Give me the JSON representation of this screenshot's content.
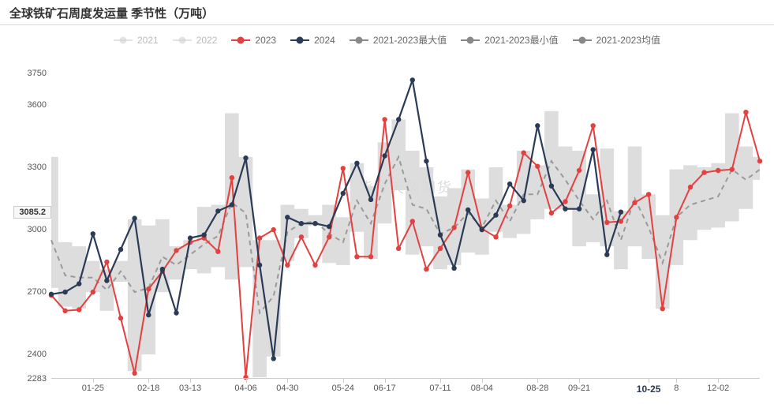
{
  "title": "全球铁矿石周度发运量 季节性（万吨）",
  "watermark": "紫金天风期货",
  "legend": [
    {
      "key": "2021",
      "label": "2021",
      "color": "#d0d0d0",
      "faded": true
    },
    {
      "key": "2022",
      "label": "2022",
      "color": "#d0d0d0",
      "faded": true
    },
    {
      "key": "2023",
      "label": "2023",
      "color": "#e34040",
      "faded": false
    },
    {
      "key": "2024",
      "label": "2024",
      "color": "#2b3a55",
      "faded": false
    },
    {
      "key": "max",
      "label": "2021-2023最大值",
      "color": "#888888",
      "faded": false
    },
    {
      "key": "min",
      "label": "2021-2023最小值",
      "color": "#888888",
      "faded": false
    },
    {
      "key": "avg",
      "label": "2021-2023均值",
      "color": "#888888",
      "faded": false
    }
  ],
  "chart": {
    "type": "line",
    "ylim": [
      2283,
      3820
    ],
    "yticks": [
      {
        "v": 2283,
        "label": "2283"
      },
      {
        "v": 2400,
        "label": "2400"
      },
      {
        "v": 2700,
        "label": "2700"
      },
      {
        "v": 3000,
        "label": "3000"
      },
      {
        "v": 3085.2,
        "label": "3085.2",
        "boxed": true
      },
      {
        "v": 3300,
        "label": "3300"
      },
      {
        "v": 3600,
        "label": "3600"
      },
      {
        "v": 3750,
        "label": "3750"
      }
    ],
    "xticks": [
      {
        "i": 3,
        "label": "01-25"
      },
      {
        "i": 7,
        "label": "02-18"
      },
      {
        "i": 10,
        "label": "03-13"
      },
      {
        "i": 14,
        "label": "04-06"
      },
      {
        "i": 17,
        "label": "04-30"
      },
      {
        "i": 21,
        "label": "05-24"
      },
      {
        "i": 24,
        "label": "06-17"
      },
      {
        "i": 28,
        "label": "07-11"
      },
      {
        "i": 31,
        "label": "08-04"
      },
      {
        "i": 35,
        "label": "08-28"
      },
      {
        "i": 38,
        "label": "09-21"
      },
      {
        "i": 43,
        "label": "10-25",
        "bold": true
      },
      {
        "i": 45,
        "label": "8",
        "small": true
      },
      {
        "i": 48,
        "label": "12-02"
      }
    ],
    "n_points": 52,
    "range_band": {
      "color": "#d9d9d9",
      "opacity": 0.9,
      "max": [
        3350,
        2940,
        2920,
        2850,
        2810,
        2850,
        3050,
        3020,
        3050,
        2920,
        2950,
        3110,
        3120,
        3560,
        3350,
        2950,
        2950,
        3120,
        3100,
        3070,
        3120,
        3060,
        3320,
        3210,
        3420,
        3530,
        3380,
        3300,
        3160,
        3200,
        3290,
        3150,
        3300,
        3120,
        3380,
        3310,
        3570,
        3400,
        3380,
        3170,
        3390,
        3090,
        3400,
        3170,
        3070,
        3290,
        3310,
        3300,
        3320,
        3560,
        3400,
        3350
      ],
      "min": [
        2720,
        2630,
        2620,
        2700,
        2610,
        2750,
        2320,
        2400,
        2700,
        2760,
        2810,
        2790,
        2820,
        2760,
        2820,
        2290,
        2390,
        2850,
        2960,
        3020,
        2840,
        2830,
        2990,
        2860,
        3030,
        3190,
        2880,
        2920,
        2810,
        2830,
        2890,
        2880,
        2990,
        2960,
        2980,
        3050,
        3100,
        3100,
        2920,
        2940,
        2920,
        2810,
        2920,
        2860,
        2620,
        2830,
        2950,
        3000,
        3010,
        3040,
        3100,
        3240
      ]
    },
    "avg_line": {
      "color": "#9a9a9a",
      "width": 2,
      "dash": "6,5",
      "values": [
        2950,
        2780,
        2770,
        2770,
        2710,
        2800,
        2700,
        2720,
        2870,
        2830,
        2880,
        2930,
        2970,
        3130,
        3080,
        2600,
        2680,
        2990,
        3030,
        3040,
        2980,
        2940,
        3140,
        3030,
        3220,
        3350,
        3120,
        3100,
        2980,
        3010,
        3080,
        3010,
        3140,
        3040,
        3170,
        3170,
        3330,
        3240,
        3140,
        3050,
        3140,
        2950,
        3150,
        3010,
        2840,
        3060,
        3120,
        3140,
        3160,
        3290,
        3240,
        3290
      ]
    },
    "series": [
      {
        "name": "2023",
        "color": "#e34040",
        "width": 2,
        "marker_r": 3.2,
        "values": [
          2685,
          2610,
          2615,
          2700,
          2845,
          2575,
          2310,
          2715,
          2800,
          2900,
          2940,
          2960,
          2895,
          3250,
          2290,
          2960,
          3000,
          2830,
          2965,
          2830,
          2965,
          3295,
          2870,
          2870,
          3530,
          2910,
          3040,
          2810,
          2910,
          3010,
          3275,
          3005,
          2965,
          3115,
          3370,
          3305,
          3080,
          3135,
          3285,
          3500,
          3035,
          3040,
          3130,
          3170,
          2620,
          3060,
          3205,
          3275,
          3285,
          3290,
          3565,
          3330
        ]
      },
      {
        "name": "2024",
        "color": "#2b3a55",
        "width": 2.2,
        "marker_r": 3.2,
        "values": [
          2690,
          2700,
          2740,
          2980,
          2755,
          2905,
          3055,
          2590,
          2810,
          2600,
          2960,
          2975,
          3090,
          3120,
          3345,
          2830,
          2380,
          3060,
          3030,
          3030,
          3015,
          3175,
          3320,
          3145,
          3355,
          3530,
          3720,
          3330,
          2975,
          2815,
          3095,
          3000,
          3070,
          3220,
          3140,
          3500,
          3210,
          3100,
          3100,
          3385,
          2880,
          3085
        ]
      }
    ],
    "background_color": "#ffffff",
    "title_fontsize": 15,
    "axis_font_color": "#555",
    "label_fontsize": 11
  }
}
